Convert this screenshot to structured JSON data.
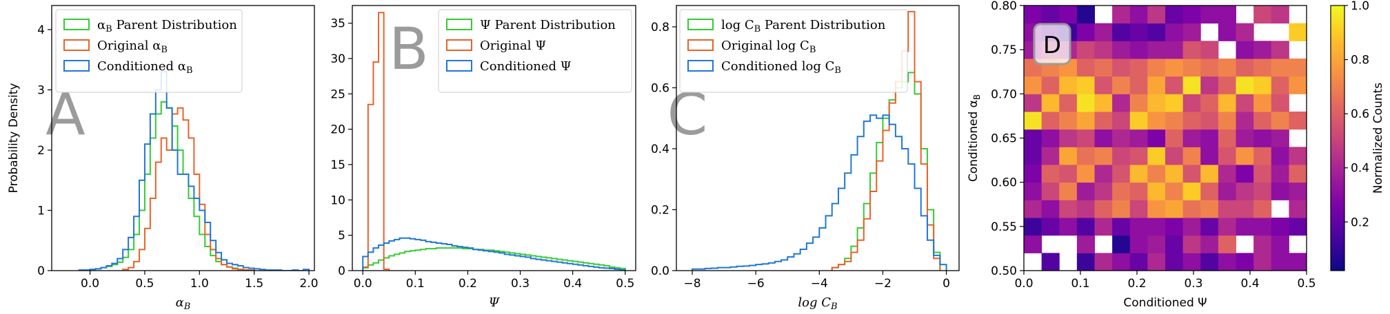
{
  "chart_data": [
    {
      "type": "histogram",
      "panel_letter": "A",
      "xlabel": "α_B",
      "ylabel": "Probability Density",
      "xlim": [
        -0.35,
        2.05
      ],
      "ylim": [
        0,
        4.4
      ],
      "xticks": [
        0.0,
        0.5,
        1.0,
        1.5,
        2.0
      ],
      "xtick_labels": [
        "0.0",
        "0.5",
        "1.0",
        "1.5",
        "2.0"
      ],
      "yticks": [
        0,
        1,
        2,
        3,
        4
      ],
      "ytick_labels": [
        "0",
        "1",
        "2",
        "3",
        "4"
      ],
      "legend_position": "top-left",
      "series": [
        {
          "name": "α_B Parent Distribution",
          "color": "#33cc33",
          "edges": [
            0.0,
            0.05,
            0.1,
            0.15,
            0.2,
            0.25,
            0.3,
            0.35,
            0.4,
            0.45,
            0.5,
            0.55,
            0.6,
            0.65,
            0.7,
            0.75,
            0.8,
            0.85,
            0.9,
            0.95,
            1.0,
            1.05,
            1.1,
            1.15,
            1.2,
            1.25,
            1.3,
            1.35,
            1.4,
            1.45,
            1.5
          ],
          "values": [
            0.02,
            0.03,
            0.05,
            0.07,
            0.1,
            0.14,
            0.22,
            0.35,
            0.6,
            1.0,
            1.6,
            2.2,
            2.6,
            2.8,
            2.7,
            2.4,
            2.0,
            1.6,
            1.2,
            0.9,
            0.6,
            0.4,
            0.25,
            0.15,
            0.1,
            0.06,
            0.04,
            0.02,
            0.01,
            0.01
          ]
        },
        {
          "name": "Original α_B",
          "color": "#e8622a",
          "edges": [
            0.3,
            0.35,
            0.4,
            0.45,
            0.5,
            0.55,
            0.6,
            0.65,
            0.7,
            0.75,
            0.8,
            0.85,
            0.9,
            0.95,
            1.0,
            1.05,
            1.1,
            1.15,
            1.2,
            1.25,
            1.3,
            1.35,
            1.4,
            1.45,
            1.5
          ],
          "values": [
            0.02,
            0.05,
            0.15,
            0.35,
            0.7,
            1.2,
            1.8,
            2.2,
            2.0,
            2.6,
            2.7,
            2.5,
            2.2,
            1.6,
            1.1,
            0.6,
            0.35,
            0.2,
            0.1,
            0.06,
            0.03,
            0.02,
            0.01,
            0.01
          ]
        },
        {
          "name": "Conditioned α_B",
          "color": "#1f77d4",
          "edges": [
            -0.1,
            -0.05,
            0.0,
            0.05,
            0.1,
            0.15,
            0.2,
            0.25,
            0.3,
            0.35,
            0.4,
            0.45,
            0.5,
            0.55,
            0.6,
            0.65,
            0.7,
            0.75,
            0.8,
            0.85,
            0.9,
            0.95,
            1.0,
            1.05,
            1.1,
            1.15,
            1.2,
            1.25,
            1.3,
            1.35,
            1.4,
            1.45,
            1.5,
            1.55,
            1.6,
            1.65,
            1.7,
            1.75,
            1.8,
            1.85,
            1.9,
            1.95,
            2.0
          ],
          "values": [
            0.01,
            0.01,
            0.02,
            0.03,
            0.05,
            0.08,
            0.12,
            0.2,
            0.35,
            0.55,
            0.9,
            1.5,
            2.1,
            2.6,
            3.0,
            3.3,
            2.7,
            2.0,
            1.6,
            1.6,
            1.4,
            1.2,
            1.0,
            0.8,
            0.5,
            0.3,
            0.18,
            0.12,
            0.1,
            0.08,
            0.05,
            0.04,
            0.03,
            0.02,
            0.01,
            0.01,
            0.01,
            0.0,
            0.0,
            0.01,
            0.0,
            0.02
          ]
        }
      ]
    },
    {
      "type": "histogram",
      "panel_letter": "B",
      "xlabel": "Ψ",
      "ylabel": "",
      "xlim": [
        -0.02,
        0.52
      ],
      "ylim": [
        0,
        37.5
      ],
      "xticks": [
        0.0,
        0.1,
        0.2,
        0.3,
        0.4,
        0.5
      ],
      "xtick_labels": [
        "0.0",
        "0.1",
        "0.2",
        "0.3",
        "0.4",
        "0.5"
      ],
      "yticks": [
        0,
        5,
        10,
        15,
        20,
        25,
        30,
        35
      ],
      "ytick_labels": [
        "0",
        "5",
        "10",
        "15",
        "20",
        "25",
        "30",
        "35"
      ],
      "legend_position": "top-right",
      "series": [
        {
          "name": "Ψ Parent Distribution",
          "color": "#33cc33",
          "edges": [
            0.0,
            0.01,
            0.02,
            0.03,
            0.04,
            0.05,
            0.06,
            0.07,
            0.08,
            0.09,
            0.1,
            0.11,
            0.12,
            0.13,
            0.14,
            0.15,
            0.16,
            0.17,
            0.18,
            0.19,
            0.2,
            0.21,
            0.22,
            0.23,
            0.24,
            0.25,
            0.26,
            0.27,
            0.28,
            0.29,
            0.3,
            0.31,
            0.32,
            0.33,
            0.34,
            0.35,
            0.36,
            0.37,
            0.38,
            0.39,
            0.4,
            0.41,
            0.42,
            0.43,
            0.44,
            0.45,
            0.46,
            0.47,
            0.48,
            0.49,
            0.5
          ],
          "values": [
            0.4,
            0.8,
            1.1,
            1.5,
            1.8,
            2.1,
            2.3,
            2.5,
            2.7,
            2.8,
            2.9,
            3.0,
            3.1,
            3.1,
            3.2,
            3.2,
            3.2,
            3.2,
            3.2,
            3.1,
            3.1,
            3.0,
            3.0,
            2.9,
            2.9,
            2.8,
            2.7,
            2.6,
            2.5,
            2.4,
            2.3,
            2.2,
            2.1,
            2.0,
            1.9,
            1.8,
            1.7,
            1.6,
            1.5,
            1.4,
            1.3,
            1.2,
            1.1,
            1.0,
            0.9,
            0.8,
            0.7,
            0.5,
            0.4,
            0.3
          ]
        },
        {
          "name": "Original Ψ",
          "color": "#e8622a",
          "edges": [
            0.0,
            0.01,
            0.02,
            0.03,
            0.04,
            0.05
          ],
          "values": [
            0.5,
            23.5,
            29.5,
            36.5,
            0.2
          ]
        },
        {
          "name": "Conditioned Ψ",
          "color": "#1f77d4",
          "edges": [
            0.0,
            0.01,
            0.02,
            0.03,
            0.04,
            0.05,
            0.06,
            0.07,
            0.08,
            0.09,
            0.1,
            0.11,
            0.12,
            0.13,
            0.14,
            0.15,
            0.16,
            0.17,
            0.18,
            0.19,
            0.2,
            0.21,
            0.22,
            0.23,
            0.24,
            0.25,
            0.26,
            0.27,
            0.28,
            0.29,
            0.3,
            0.31,
            0.32,
            0.33,
            0.34,
            0.35,
            0.36,
            0.37,
            0.38,
            0.39,
            0.4,
            0.41,
            0.42,
            0.43,
            0.44,
            0.45,
            0.46,
            0.47,
            0.48,
            0.49,
            0.5
          ],
          "values": [
            2.0,
            2.6,
            3.2,
            3.6,
            3.9,
            4.2,
            4.4,
            4.6,
            4.6,
            4.5,
            4.4,
            4.3,
            4.1,
            4.0,
            3.9,
            3.8,
            3.7,
            3.5,
            3.4,
            3.3,
            3.2,
            3.0,
            2.9,
            2.8,
            2.7,
            2.6,
            2.5,
            2.3,
            2.2,
            2.1,
            2.0,
            1.9,
            1.7,
            1.6,
            1.5,
            1.4,
            1.3,
            1.2,
            1.1,
            1.0,
            0.9,
            0.8,
            0.7,
            0.6,
            0.5,
            0.4,
            0.35,
            0.3,
            0.2,
            0.1
          ]
        }
      ]
    },
    {
      "type": "histogram",
      "panel_letter": "C",
      "xlabel": "log C_B",
      "ylabel": "",
      "xlim": [
        -8.5,
        0.4
      ],
      "ylim": [
        0,
        0.87
      ],
      "xticks": [
        -8,
        -6,
        -4,
        -2,
        0
      ],
      "xtick_labels": [
        "−8",
        "−6",
        "−4",
        "−2",
        "0"
      ],
      "yticks": [
        0.0,
        0.2,
        0.4,
        0.6,
        0.8
      ],
      "ytick_labels": [
        "0.0",
        "0.2",
        "0.4",
        "0.6",
        "0.8"
      ],
      "legend_position": "top-left",
      "series": [
        {
          "name": "log C_B Parent Distribution",
          "color": "#33cc33",
          "edges": [
            -3.6,
            -3.4,
            -3.2,
            -3.0,
            -2.8,
            -2.6,
            -2.4,
            -2.2,
            -2.0,
            -1.8,
            -1.6,
            -1.4,
            -1.2,
            -1.0,
            -0.8,
            -0.6,
            -0.4,
            -0.2
          ],
          "values": [
            0.01,
            0.02,
            0.04,
            0.08,
            0.14,
            0.22,
            0.32,
            0.42,
            0.5,
            0.56,
            0.6,
            0.62,
            0.65,
            0.58,
            0.4,
            0.2,
            0.06
          ]
        },
        {
          "name": "Original log C_B",
          "color": "#e8622a",
          "edges": [
            -3.6,
            -3.4,
            -3.2,
            -3.0,
            -2.8,
            -2.6,
            -2.4,
            -2.2,
            -2.0,
            -1.8,
            -1.6,
            -1.4,
            -1.2,
            -1.0,
            -0.8,
            -0.6,
            -0.4,
            -0.2
          ],
          "values": [
            0.01,
            0.02,
            0.03,
            0.06,
            0.1,
            0.17,
            0.26,
            0.36,
            0.46,
            0.55,
            0.62,
            0.72,
            0.85,
            0.62,
            0.35,
            0.15,
            0.04
          ]
        },
        {
          "name": "Conditioned log C_B",
          "color": "#1f77d4",
          "edges": [
            -8.0,
            -7.8,
            -7.6,
            -7.4,
            -7.2,
            -7.0,
            -6.8,
            -6.6,
            -6.4,
            -6.2,
            -6.0,
            -5.8,
            -5.6,
            -5.4,
            -5.2,
            -5.0,
            -4.8,
            -4.6,
            -4.4,
            -4.2,
            -4.0,
            -3.8,
            -3.6,
            -3.4,
            -3.2,
            -3.0,
            -2.8,
            -2.6,
            -2.4,
            -2.2,
            -2.0,
            -1.8,
            -1.6,
            -1.4,
            -1.2,
            -1.0,
            -0.8,
            -0.6,
            -0.4,
            -0.2,
            0.0
          ],
          "values": [
            0.005,
            0.005,
            0.007,
            0.008,
            0.01,
            0.01,
            0.012,
            0.014,
            0.015,
            0.017,
            0.02,
            0.022,
            0.025,
            0.03,
            0.035,
            0.045,
            0.055,
            0.07,
            0.09,
            0.11,
            0.14,
            0.18,
            0.22,
            0.27,
            0.32,
            0.38,
            0.44,
            0.49,
            0.51,
            0.5,
            0.51,
            0.48,
            0.44,
            0.4,
            0.35,
            0.27,
            0.18,
            0.1,
            0.05,
            0.02
          ]
        }
      ]
    },
    {
      "type": "heatmap",
      "panel_letter": "D",
      "xlabel": "Conditioned Ψ",
      "ylabel": "Conditioned α_B",
      "xlim": [
        0.0,
        0.5
      ],
      "ylim": [
        0.5,
        0.8
      ],
      "xticks": [
        0.0,
        0.1,
        0.2,
        0.3,
        0.4,
        0.5
      ],
      "xtick_labels": [
        "0.0",
        "0.1",
        "0.2",
        "0.3",
        "0.4",
        "0.5"
      ],
      "yticks": [
        0.5,
        0.55,
        0.6,
        0.65,
        0.7,
        0.75,
        0.8
      ],
      "ytick_labels": [
        "0.50",
        "0.55",
        "0.60",
        "0.65",
        "0.70",
        "0.75",
        "0.80"
      ],
      "colormap": "plasma",
      "colorbar_label": "Normalized Counts",
      "colorbar_ticks": [
        0.2,
        0.4,
        0.6,
        0.8,
        1.0
      ],
      "colorbar_tick_labels": [
        "0.2",
        "0.4",
        "0.6",
        "0.8",
        "1.0"
      ],
      "nx": 16,
      "ny": 15,
      "values_bottom_to_top": [
        [
          null,
          0.15,
          null,
          0.1,
          0.4,
          0.3,
          0.2,
          0.4,
          0.2,
          0.3,
          0.15,
          0.3,
          0.25,
          0.4,
          0.3,
          0.3
        ],
        [
          0.3,
          null,
          null,
          0.35,
          null,
          0.05,
          0.3,
          0.35,
          0.2,
          0.45,
          0.35,
          0.6,
          null,
          0.4,
          0.3,
          null
        ],
        [
          0.1,
          0.2,
          0.3,
          0.15,
          0.4,
          0.2,
          0.3,
          0.3,
          0.25,
          0.35,
          0.2,
          0.4,
          0.3,
          0.3,
          0.25,
          0.2
        ],
        [
          0.4,
          0.3,
          0.5,
          0.45,
          0.6,
          0.7,
          0.5,
          0.75,
          0.8,
          0.65,
          0.7,
          0.5,
          0.5,
          0.6,
          null,
          0.4
        ],
        [
          0.3,
          0.5,
          0.7,
          0.35,
          0.45,
          0.65,
          0.6,
          0.85,
          0.7,
          0.9,
          0.6,
          0.35,
          0.45,
          0.5,
          0.3,
          0.35
        ],
        [
          0.25,
          0.6,
          0.55,
          0.75,
          0.4,
          0.55,
          0.85,
          0.7,
          0.85,
          0.55,
          0.85,
          0.4,
          0.25,
          0.55,
          0.35,
          0.6
        ],
        [
          0.2,
          0.4,
          0.8,
          0.65,
          0.7,
          0.5,
          0.55,
          0.9,
          0.5,
          0.7,
          0.3,
          0.55,
          0.75,
          0.6,
          0.3,
          0.45
        ],
        [
          0.2,
          0.3,
          0.45,
          0.5,
          0.3,
          0.4,
          0.35,
          0.25,
          0.6,
          0.35,
          0.3,
          0.6,
          0.35,
          0.3,
          0.35,
          null
        ],
        [
          0.95,
          0.6,
          0.7,
          0.8,
          0.6,
          0.5,
          0.9,
          0.75,
          0.7,
          0.6,
          0.55,
          0.7,
          0.4,
          0.6,
          0.7,
          0.6
        ],
        [
          0.45,
          0.85,
          0.6,
          0.95,
          0.85,
          0.4,
          0.7,
          0.85,
          0.9,
          0.5,
          0.6,
          0.85,
          0.5,
          0.75,
          0.55,
          null
        ],
        [
          0.75,
          0.6,
          0.85,
          0.9,
          0.55,
          0.7,
          0.6,
          0.8,
          0.55,
          0.95,
          0.45,
          0.6,
          0.95,
          0.9,
          0.6,
          0.75
        ],
        [
          0.65,
          0.7,
          0.75,
          0.6,
          0.65,
          0.55,
          0.6,
          0.7,
          0.75,
          0.7,
          0.65,
          0.7,
          0.6,
          0.65,
          0.7,
          0.7
        ],
        [
          0.35,
          0.45,
          0.4,
          0.5,
          0.45,
          0.35,
          0.3,
          0.35,
          0.35,
          0.55,
          0.5,
          null,
          0.3,
          0.35,
          0.45,
          null
        ],
        [
          0.3,
          0.2,
          0.1,
          0.25,
          0.35,
          0.15,
          0.2,
          0.15,
          0.3,
          0.35,
          null,
          0.3,
          0.4,
          null,
          null,
          0.9
        ],
        [
          0.25,
          0.2,
          0.25,
          0.05,
          null,
          0.4,
          0.3,
          0.45,
          0.2,
          0.25,
          0.3,
          0.3,
          null,
          0.5,
          0.45,
          null
        ]
      ]
    }
  ]
}
